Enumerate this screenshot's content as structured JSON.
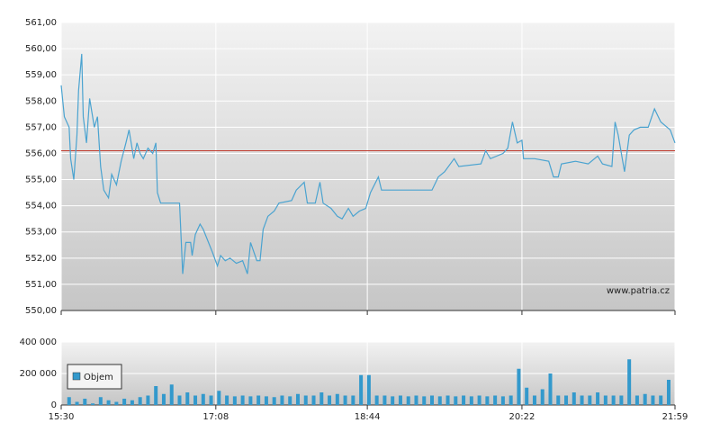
{
  "chart_data": [
    {
      "type": "line",
      "watermark": "www.patria.cz",
      "color": "#4aa3d0",
      "grid": true,
      "reference_line": {
        "value": 556.1,
        "color": "#c0392b"
      },
      "xlim": [
        "15:30",
        "21:59"
      ],
      "xticks": [
        "15:30",
        "17:08",
        "18:44",
        "20:22",
        "21:59"
      ],
      "ylim": [
        550,
        561
      ],
      "yticks": [
        {
          "value": 550,
          "label": "550,00"
        },
        {
          "value": 551,
          "label": "551,00"
        },
        {
          "value": 552,
          "label": "552,00"
        },
        {
          "value": 553,
          "label": "553,00"
        },
        {
          "value": 554,
          "label": "554,00"
        },
        {
          "value": 555,
          "label": "555,00"
        },
        {
          "value": 556,
          "label": "556,00"
        },
        {
          "value": 557,
          "label": "557,00"
        },
        {
          "value": 558,
          "label": "558,00"
        },
        {
          "value": 559,
          "label": "559,00"
        },
        {
          "value": 560,
          "label": "560,00"
        },
        {
          "value": 561,
          "label": "561,00"
        }
      ],
      "x": [
        "15:30",
        "15:32",
        "15:35",
        "15:36",
        "15:38",
        "15:40",
        "15:41",
        "15:43",
        "15:44",
        "15:46",
        "15:48",
        "15:51",
        "15:53",
        "15:55",
        "15:57",
        "16:00",
        "16:02",
        "16:05",
        "16:08",
        "16:11",
        "16:13",
        "16:16",
        "16:18",
        "16:20",
        "16:22",
        "16:25",
        "16:28",
        "16:30",
        "16:31",
        "16:33",
        "16:45",
        "16:46",
        "16:47",
        "16:49",
        "16:52",
        "16:53",
        "16:55",
        "16:58",
        "17:00",
        "17:02",
        "17:06",
        "17:09",
        "17:11",
        "17:14",
        "17:17",
        "17:21",
        "17:25",
        "17:28",
        "17:30",
        "17:34",
        "17:36",
        "17:38",
        "17:41",
        "17:45",
        "17:48",
        "17:56",
        "17:59",
        "18:04",
        "18:06",
        "18:11",
        "18:14",
        "18:16",
        "18:21",
        "18:25",
        "18:28",
        "18:32",
        "18:35",
        "18:39",
        "18:43",
        "18:46",
        "18:51",
        "18:53",
        "19:09",
        "19:25",
        "19:29",
        "19:33",
        "19:39",
        "19:42",
        "19:56",
        "19:59",
        "20:02",
        "20:10",
        "20:13",
        "20:16",
        "20:19",
        "20:22",
        "20:23",
        "20:30",
        "20:39",
        "20:42",
        "20:45",
        "20:47",
        "20:56",
        "21:04",
        "21:10",
        "21:13",
        "21:19",
        "21:21",
        "21:23",
        "21:27",
        "21:30",
        "21:33",
        "21:37",
        "21:42",
        "21:46",
        "21:50",
        "21:56",
        "21:59"
      ],
      "values": [
        558.6,
        557.4,
        557.0,
        555.8,
        555.0,
        556.7,
        558.4,
        559.8,
        557.4,
        556.4,
        558.1,
        557.0,
        557.4,
        555.5,
        554.6,
        554.3,
        555.2,
        554.8,
        555.7,
        556.4,
        556.9,
        555.8,
        556.4,
        556.0,
        555.8,
        556.2,
        556.0,
        556.4,
        554.5,
        554.1,
        554.1,
        552.8,
        551.4,
        552.6,
        552.6,
        552.1,
        552.9,
        553.3,
        553.1,
        552.8,
        552.2,
        551.7,
        552.1,
        551.9,
        552.0,
        551.8,
        551.9,
        551.4,
        552.6,
        551.9,
        551.9,
        553.1,
        553.6,
        553.8,
        554.1,
        554.2,
        554.6,
        554.9,
        554.1,
        554.1,
        554.9,
        554.1,
        553.9,
        553.6,
        553.5,
        553.9,
        553.6,
        553.8,
        553.9,
        554.5,
        555.1,
        554.6,
        554.6,
        554.6,
        555.1,
        555.3,
        555.8,
        555.5,
        555.6,
        556.1,
        555.8,
        556.0,
        556.2,
        557.2,
        556.4,
        556.5,
        555.8,
        555.8,
        555.7,
        555.1,
        555.1,
        555.6,
        555.7,
        555.6,
        555.9,
        555.6,
        555.5,
        557.2,
        556.7,
        555.3,
        556.7,
        556.9,
        557.0,
        557.0,
        557.7,
        557.2,
        556.9,
        556.4
      ]
    },
    {
      "type": "bar",
      "grid": true,
      "legend": "top-left",
      "xlim": [
        "15:30",
        "21:59"
      ],
      "xticks": [
        "15:30",
        "17:08",
        "18:44",
        "20:22",
        "21:59"
      ],
      "ylim": [
        0,
        400000
      ],
      "yticks": [
        0,
        {
          "value": 200000,
          "label": "200 000"
        },
        {
          "value": 400000,
          "label": "400 000"
        }
      ],
      "x": [
        "15:35",
        "15:40",
        "15:45",
        "15:50",
        "15:55",
        "16:00",
        "16:05",
        "16:10",
        "16:15",
        "16:20",
        "16:25",
        "16:30",
        "16:35",
        "16:40",
        "16:45",
        "16:50",
        "16:55",
        "17:00",
        "17:05",
        "17:10",
        "17:15",
        "17:20",
        "17:25",
        "17:30",
        "17:35",
        "17:40",
        "17:45",
        "17:50",
        "17:55",
        "18:00",
        "18:05",
        "18:10",
        "18:15",
        "18:20",
        "18:25",
        "18:30",
        "18:35",
        "18:40",
        "18:45",
        "18:50",
        "18:55",
        "19:00",
        "19:05",
        "19:10",
        "19:15",
        "19:20",
        "19:25",
        "19:30",
        "19:35",
        "19:40",
        "19:45",
        "19:50",
        "19:55",
        "20:00",
        "20:05",
        "20:10",
        "20:15",
        "20:20",
        "20:25",
        "20:30",
        "20:35",
        "20:40",
        "20:45",
        "20:50",
        "20:55",
        "21:00",
        "21:05",
        "21:10",
        "21:15",
        "21:20",
        "21:25",
        "21:30",
        "21:35",
        "21:40",
        "21:45",
        "21:50",
        "21:55"
      ],
      "series": [
        {
          "name": "Objem",
          "color": "#3399cc",
          "values": [
            50000,
            20000,
            40000,
            10000,
            50000,
            30000,
            20000,
            40000,
            30000,
            50000,
            60000,
            120000,
            70000,
            130000,
            60000,
            80000,
            60000,
            70000,
            60000,
            90000,
            60000,
            55000,
            60000,
            55000,
            60000,
            55000,
            50000,
            60000,
            55000,
            70000,
            60000,
            60000,
            80000,
            60000,
            70000,
            60000,
            60000,
            190000,
            190000,
            60000,
            60000,
            55000,
            60000,
            55000,
            60000,
            55000,
            60000,
            55000,
            60000,
            55000,
            60000,
            55000,
            60000,
            55000,
            60000,
            55000,
            60000,
            230000,
            110000,
            60000,
            100000,
            200000,
            60000,
            60000,
            80000,
            60000,
            60000,
            80000,
            60000,
            60000,
            60000,
            290000,
            60000,
            70000,
            60000,
            60000,
            160000
          ]
        }
      ]
    }
  ]
}
